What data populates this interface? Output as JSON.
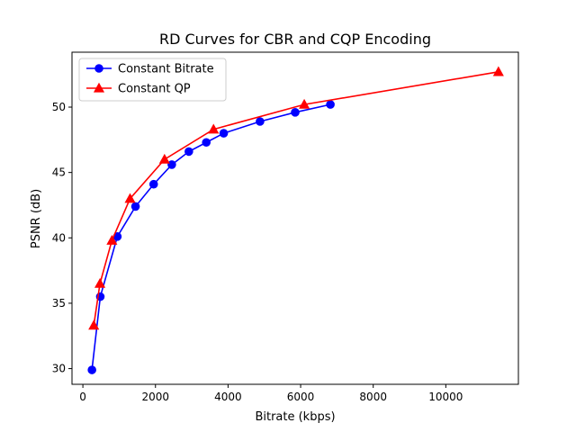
{
  "chart_data": {
    "type": "line",
    "title": "RD Curves for CBR and CQP Encoding",
    "xlabel": "Bitrate (kbps)",
    "ylabel": "PSNR (dB)",
    "xlim": [
      -300,
      12000
    ],
    "ylim": [
      28.8,
      54.2
    ],
    "xticks": [
      0,
      2000,
      4000,
      6000,
      8000,
      10000
    ],
    "yticks": [
      30,
      35,
      40,
      45,
      50
    ],
    "xtick_labels": [
      "0",
      "2000",
      "4000",
      "6000",
      "8000",
      "10000"
    ],
    "ytick_labels": [
      "30",
      "35",
      "40",
      "45",
      "50"
    ],
    "grid": false,
    "legend_position": "top-left",
    "series": [
      {
        "name": "Constant Bitrate",
        "color": "#0000ff",
        "marker": "circle",
        "x": [
          250,
          480,
          950,
          1450,
          1950,
          2450,
          2920,
          3400,
          3880,
          4880,
          5850,
          6820
        ],
        "y": [
          29.9,
          35.5,
          40.1,
          42.4,
          44.1,
          45.6,
          46.6,
          47.3,
          48.0,
          48.9,
          49.6,
          50.2
        ]
      },
      {
        "name": "Constant QP",
        "color": "#ff0000",
        "marker": "triangle",
        "x": [
          300,
          470,
          800,
          1300,
          2250,
          3600,
          6100,
          11450
        ],
        "y": [
          33.3,
          36.5,
          39.8,
          43.0,
          46.0,
          48.3,
          50.2,
          52.7
        ]
      }
    ]
  }
}
